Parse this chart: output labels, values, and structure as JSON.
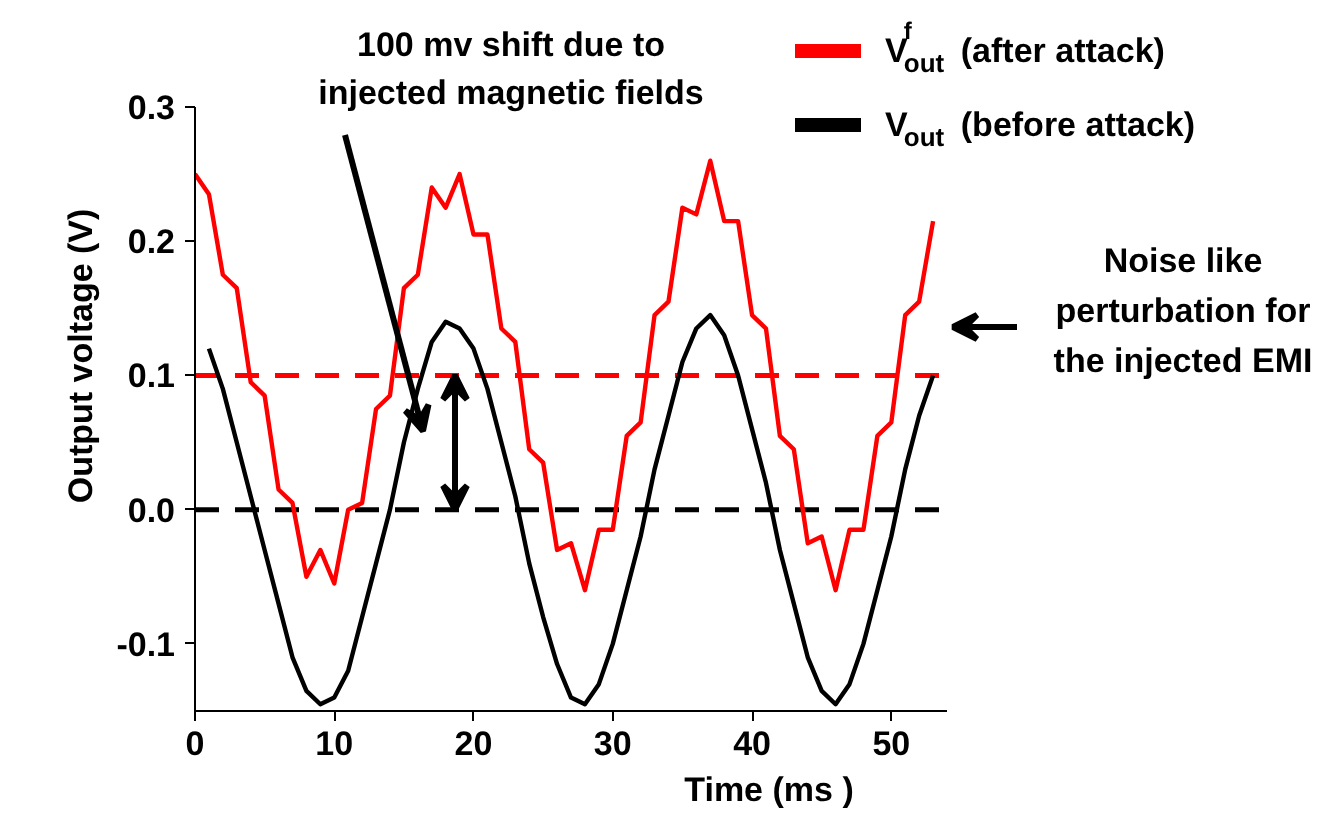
{
  "chart_data": {
    "type": "line",
    "xlabel": "Time (ms )",
    "ylabel": "Output voltage (V)",
    "xlim": [
      0,
      54
    ],
    "ylim": [
      -0.15,
      0.3
    ],
    "xticks": [
      0,
      10,
      20,
      30,
      40,
      50
    ],
    "yticks": [
      {
        "value": -0.1,
        "label": "-0.1"
      },
      {
        "value": 0,
        "label": "0.0"
      },
      {
        "value": 0.1,
        "label": "0.1"
      },
      {
        "value": 0.2,
        "label": "0.2"
      },
      {
        "value": 0.3,
        "label": "0.3"
      }
    ],
    "grid": false,
    "legend": "top right",
    "line_style": "solid",
    "marker": "none",
    "series": [
      {
        "name": "V$^{f}$$_{out}$ (after attack)",
        "color": "#ff0000",
        "x": [
          0,
          1,
          2,
          3,
          4,
          5,
          6,
          7,
          8,
          9,
          10,
          11,
          12,
          13,
          14,
          15,
          16,
          17,
          18,
          19,
          20,
          21,
          22,
          23,
          24,
          25,
          26,
          27,
          28,
          29,
          30,
          31,
          32,
          33,
          34,
          35,
          36,
          37,
          38,
          39,
          40,
          41,
          42,
          43,
          44,
          45,
          46,
          47,
          48,
          49,
          50,
          51,
          52,
          53
        ],
        "values": [
          0.25,
          0.235,
          0.175,
          0.165,
          0.095,
          0.085,
          0.015,
          0.005,
          -0.05,
          -0.03,
          -0.055,
          0.0,
          0.005,
          0.075,
          0.085,
          0.165,
          0.175,
          0.24,
          0.225,
          0.25,
          0.205,
          0.205,
          0.135,
          0.125,
          0.045,
          0.035,
          -0.03,
          -0.025,
          -0.06,
          -0.015,
          -0.015,
          0.055,
          0.065,
          0.145,
          0.155,
          0.225,
          0.22,
          0.26,
          0.215,
          0.215,
          0.145,
          0.135,
          0.055,
          0.045,
          -0.025,
          -0.02,
          -0.06,
          -0.015,
          -0.015,
          0.055,
          0.065,
          0.145,
          0.155,
          0.215
        ]
      },
      {
        "name": "V$_{out}$ (before attack)",
        "color": "#000000",
        "x": [
          1,
          2,
          3,
          4,
          5,
          6,
          7,
          8,
          9,
          10,
          11,
          12,
          13,
          14,
          15,
          16,
          17,
          18,
          19,
          20,
          21,
          22,
          23,
          24,
          25,
          26,
          27,
          28,
          29,
          30,
          31,
          32,
          33,
          34,
          35,
          36,
          37,
          38,
          39,
          40,
          41,
          42,
          43,
          44,
          45,
          46,
          47,
          48,
          49,
          50,
          51,
          52,
          53
        ],
        "values": [
          0.12,
          0.09,
          0.05,
          0.01,
          -0.03,
          -0.07,
          -0.11,
          -0.135,
          -0.145,
          -0.14,
          -0.12,
          -0.08,
          -0.04,
          0.0,
          0.05,
          0.09,
          0.125,
          0.14,
          0.135,
          0.12,
          0.09,
          0.05,
          0.01,
          -0.04,
          -0.08,
          -0.115,
          -0.14,
          -0.145,
          -0.13,
          -0.1,
          -0.06,
          -0.02,
          0.03,
          0.07,
          0.11,
          0.135,
          0.145,
          0.13,
          0.1,
          0.06,
          0.02,
          -0.03,
          -0.07,
          -0.11,
          -0.135,
          -0.145,
          -0.13,
          -0.1,
          -0.06,
          -0.02,
          0.03,
          0.07,
          0.1
        ]
      }
    ],
    "ref_lines": [
      {
        "axis": "y",
        "value": 0.1,
        "color": "#ff0000",
        "line_style": "dashed"
      },
      {
        "axis": "y",
        "value": 0,
        "color": "#000000",
        "line_style": "dashed"
      }
    ],
    "annotations": [
      "100 mv shift due to\ninjected magnetic fields",
      "Noise like\nperturbation for\nthe injected EMI"
    ]
  }
}
